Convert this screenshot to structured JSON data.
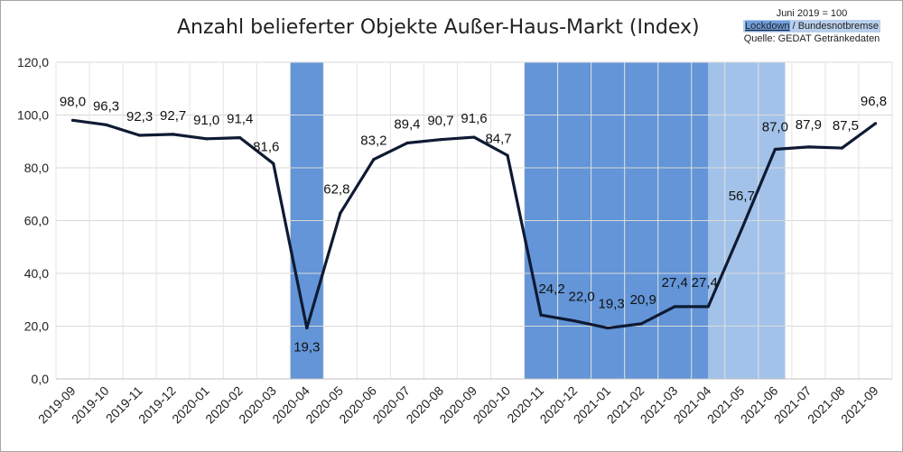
{
  "chart_data": {
    "type": "line",
    "title": "Anzahl belieferter Objekte Außer-Haus-Markt (Index)",
    "note": "Juni 2019 = 100",
    "legend_lockdown": "Lockdown",
    "legend_separator": " / ",
    "legend_bundesnotbremse": "Bundesnotbremse",
    "source": "Quelle: GEDAT Getränkedaten",
    "categories": [
      "2019-09",
      "2019-10",
      "2019-11",
      "2019-12",
      "2020-01",
      "2020-02",
      "2020-03",
      "2020-04",
      "2020-05",
      "2020-06",
      "2020-07",
      "2020-08",
      "2020-09",
      "2020-10",
      "2020-11",
      "2020-12",
      "2021-01",
      "2021-02",
      "2021-03",
      "2021-04",
      "2021-05",
      "2021-06",
      "2021-07",
      "2021-08",
      "2021-09"
    ],
    "values": [
      98.0,
      96.3,
      92.3,
      92.7,
      91.0,
      91.4,
      81.6,
      19.3,
      62.8,
      83.2,
      89.4,
      90.7,
      91.6,
      84.7,
      24.2,
      22.0,
      19.3,
      20.9,
      27.4,
      27.4,
      56.7,
      87.0,
      87.9,
      87.5,
      96.8
    ],
    "value_labels": [
      "98,0",
      "96,3",
      "92,3",
      "92,7",
      "91,0",
      "91,4",
      "81,6",
      "19,3",
      "62,8",
      "83,2",
      "89,4",
      "90,7",
      "91,6",
      "84,7",
      "24,2",
      "22,0",
      "19,3",
      "20,9",
      "27,4",
      "27,4",
      "56,7",
      "87,0",
      "87,9",
      "87,5",
      "96,8"
    ],
    "ylim": [
      0,
      120
    ],
    "yticks": [
      "0,0",
      "20,0",
      "40,0",
      "60,0",
      "80,0",
      "100,0",
      "120,0"
    ],
    "grid": true,
    "shaded_periods": [
      {
        "type": "lockdown",
        "from_index": 6.5,
        "to_index": 7.5,
        "color": "#5b8fd6"
      },
      {
        "type": "lockdown",
        "from_index": 13.5,
        "to_index": 19.0,
        "color": "#5b8fd6"
      },
      {
        "type": "bundesnotbremse",
        "from_index": 19.0,
        "to_index": 21.3,
        "color": "#9dbfe8"
      }
    ],
    "line_color": "#0f1a33"
  }
}
